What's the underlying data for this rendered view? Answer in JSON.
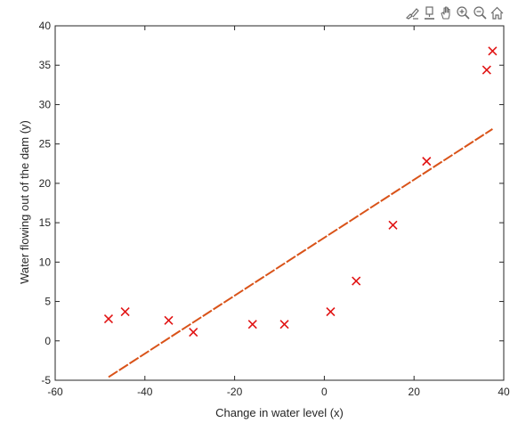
{
  "toolbar": {
    "icons": [
      "brush-edit-icon",
      "data-tip-icon",
      "pan-hand-icon",
      "zoom-in-icon",
      "zoom-out-icon",
      "home-icon"
    ]
  },
  "colors": {
    "marker": "#e11414",
    "fit_line": "#d95319",
    "axes": "#262626"
  },
  "chart_data": {
    "type": "scatter",
    "xlabel": "Change in water level (x)",
    "ylabel": "Water flowing out of the dam (y)",
    "xlim": [
      -60,
      40
    ],
    "ylim": [
      -5,
      40
    ],
    "xticks": [
      -60,
      -40,
      -20,
      0,
      20,
      40
    ],
    "yticks": [
      -5,
      0,
      5,
      10,
      15,
      20,
      25,
      30,
      35,
      40
    ],
    "grid": false,
    "series": [
      {
        "marker": "x",
        "x": [
          -48.1,
          -44.4,
          -34.7,
          -29.2,
          -16.0,
          -8.9,
          1.4,
          7.1,
          15.3,
          22.8,
          36.2,
          37.5
        ],
        "y": [
          2.8,
          3.7,
          2.6,
          1.1,
          2.1,
          2.1,
          3.7,
          7.6,
          14.7,
          22.8,
          34.4,
          36.8
        ]
      },
      {
        "line_style": "dashed",
        "x": [
          -48.1,
          37.5
        ],
        "y": [
          -4.6,
          26.9
        ]
      }
    ]
  }
}
